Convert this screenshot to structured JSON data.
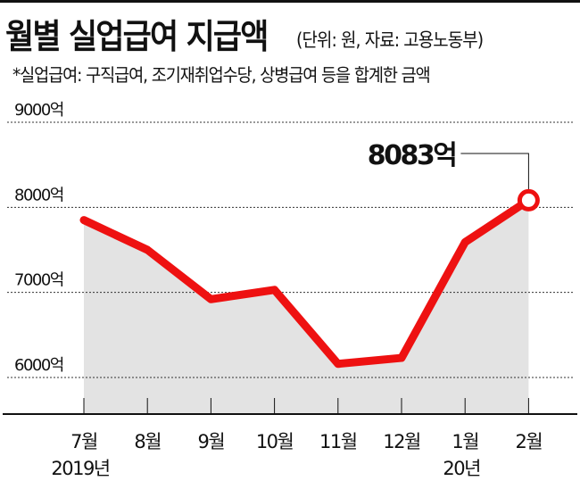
{
  "header": {
    "title": "월별 실업급여 지급액",
    "subtitle": "(단위: 원, 자료: 고용노동부)",
    "note": "*실업급여: 구직급여, 조기재취업수당, 상병급여 등을 합계한 금액"
  },
  "colors": {
    "line": "#ee1111",
    "area": "#e3e3e3",
    "grid": "#333333",
    "text": "#111111"
  },
  "chart_data": {
    "type": "line",
    "title": "월별 실업급여 지급액",
    "subtitle": "(단위: 원, 자료: 고용노동부)",
    "xlabel": "",
    "ylabel": "",
    "categories": [
      "7월",
      "8월",
      "9월",
      "10월",
      "11월",
      "12월",
      "1월",
      "2월"
    ],
    "year_labels": [
      {
        "index": 0,
        "label": "2019년"
      },
      {
        "index": 6,
        "label": "20년"
      }
    ],
    "series": [
      {
        "name": "실업급여 지급액",
        "values": [
          7850,
          7500,
          6920,
          7030,
          6160,
          6230,
          7590,
          8083
        ],
        "unit": "억원"
      }
    ],
    "yticks": [
      "6000억",
      "7000억",
      "8000억",
      "9000억"
    ],
    "ylim": [
      5550,
      9000
    ],
    "grid": true,
    "area_fill": true,
    "annotation": {
      "index": 7,
      "label": "8083억"
    }
  }
}
